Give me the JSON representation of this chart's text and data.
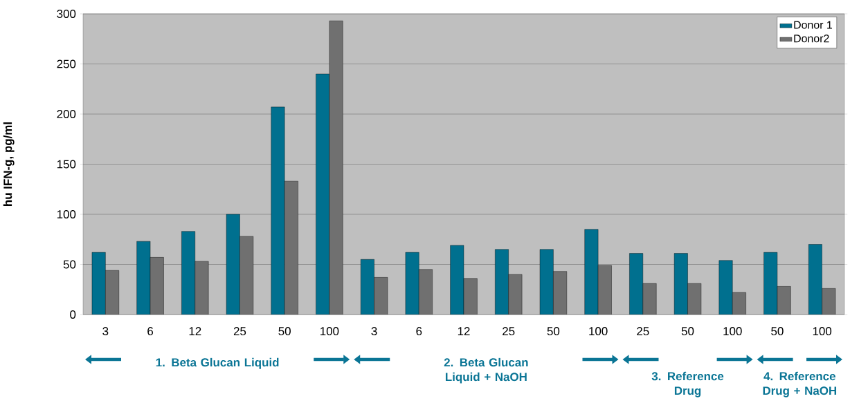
{
  "chart_data": {
    "type": "bar",
    "ylabel": "hu IFN-g, pg/ml",
    "categories": [
      "3",
      "6",
      "12",
      "25",
      "50",
      "100",
      "3",
      "6",
      "12",
      "25",
      "50",
      "100",
      "25",
      "50",
      "100",
      "50",
      "100"
    ],
    "series": [
      {
        "name": "Donor 1",
        "color": "#00708f",
        "values": [
          62,
          73,
          83,
          100,
          207,
          240,
          55,
          62,
          69,
          65,
          65,
          85,
          61,
          61,
          54,
          62,
          70
        ]
      },
      {
        "name": "Donor2",
        "color": "#707070",
        "values": [
          44,
          57,
          53,
          78,
          133,
          293,
          37,
          45,
          36,
          40,
          43,
          49,
          31,
          31,
          22,
          28,
          26
        ]
      }
    ],
    "ylim": [
      0,
      300
    ],
    "yticks": [
      0,
      50,
      100,
      150,
      200,
      250,
      300
    ],
    "grid": "y",
    "legend": "top right",
    "annotations": [
      "1. Beta Glucan Liquid",
      "2. Beta Glucan Liquid + NaOH",
      "3. Reference Drug",
      "4. Reference Drug + NaOH"
    ]
  }
}
